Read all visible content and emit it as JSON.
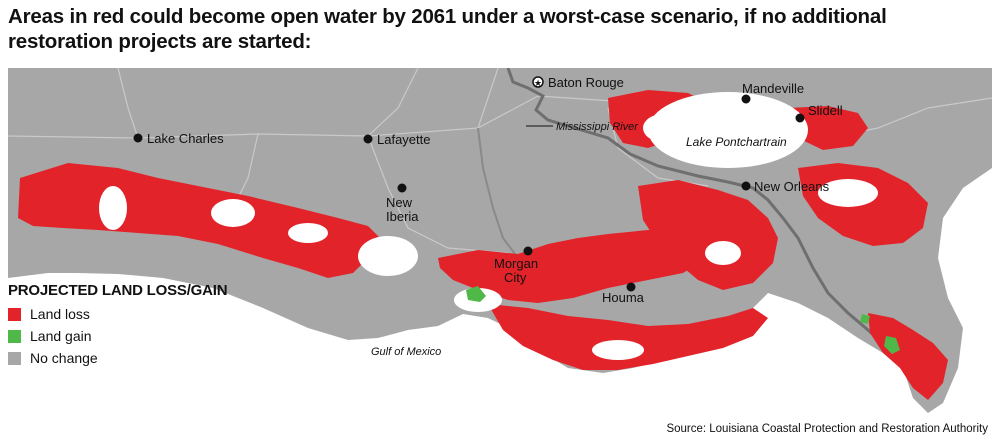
{
  "headline": "Areas in red could become open water by 2061 under a worst-case scenario, if no additional restoration projects are started:",
  "legend": {
    "title": "PROJECTED LAND LOSS/GAIN",
    "items": [
      {
        "label": "Land loss",
        "color": "#e3232a"
      },
      {
        "label": "Land gain",
        "color": "#4fb848"
      },
      {
        "label": "No change",
        "color": "#a7a7a7"
      }
    ]
  },
  "cities": {
    "baton_rouge": "Baton Rouge",
    "mandeville": "Mandeville",
    "slidell": "Slidell",
    "lake_charles": "Lake Charles",
    "lafayette": "Lafayette",
    "new_orleans": "New Orleans",
    "new_iberia_1": "New",
    "new_iberia_2": "Iberia",
    "morgan_city_1": "Morgan",
    "morgan_city_2": "City",
    "houma": "Houma"
  },
  "water_labels": {
    "mississippi": "Mississippi River",
    "pontchartrain": "Lake Pontchartrain",
    "gulf": "Gulf of Mexico"
  },
  "colors": {
    "land_loss": "#e3232a",
    "land_gain": "#4fb848",
    "no_change": "#a7a7a7",
    "water": "#ffffff",
    "roads": "#c9c9c9"
  },
  "source": "Source: Louisiana Coastal Protection and Restoration Authority"
}
